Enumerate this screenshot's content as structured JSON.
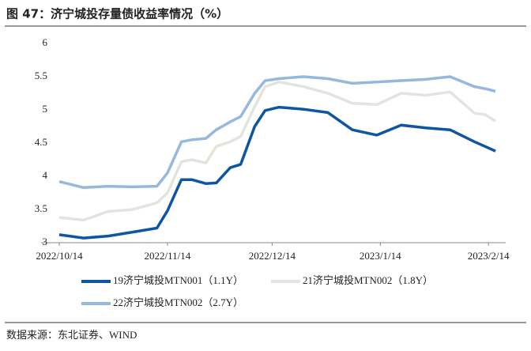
{
  "chart_data": {
    "type": "line",
    "title": "图 47：济宁城投存量债收益率情况（%）",
    "source": "数据来源：东北证券、WIND",
    "x": [
      "2022/10/14",
      "2022/10/21",
      "2022/10/28",
      "2022/11/04",
      "2022/11/11",
      "2022/11/14",
      "2022/11/18",
      "2022/11/21",
      "2022/11/25",
      "2022/11/28",
      "2022/12/02",
      "2022/12/05",
      "2022/12/09",
      "2022/12/12",
      "2022/12/16",
      "2022/12/23",
      "2022/12/30",
      "2023/01/06",
      "2023/01/13",
      "2023/01/20",
      "2023/01/27",
      "2023/02/03",
      "2023/02/10",
      "2023/02/13",
      "2023/02/16"
    ],
    "series": [
      {
        "name": "19济宁城投MTN001（1.1Y）",
        "color": "#0e56a3",
        "values": [
          3.12,
          3.07,
          3.1,
          3.16,
          3.22,
          3.48,
          3.95,
          3.95,
          3.89,
          3.9,
          4.13,
          4.18,
          4.75,
          4.99,
          5.04,
          5.01,
          4.96,
          4.7,
          4.62,
          4.77,
          4.73,
          4.7,
          4.52,
          4.45,
          4.38
        ]
      },
      {
        "name": "21济宁城投MTN002（1.8Y）",
        "color": "#e4e4de",
        "values": [
          3.38,
          3.34,
          3.47,
          3.5,
          3.6,
          3.75,
          4.22,
          4.25,
          4.2,
          4.45,
          4.52,
          4.6,
          5.05,
          5.35,
          5.42,
          5.35,
          5.25,
          5.1,
          5.08,
          5.25,
          5.22,
          5.27,
          4.95,
          4.93,
          4.83
        ]
      },
      {
        "name": "22济宁城投MTN002（2.7Y）",
        "color": "#96b8dd",
        "values": [
          3.92,
          3.83,
          3.85,
          3.84,
          3.85,
          4.05,
          4.52,
          4.55,
          4.57,
          4.7,
          4.82,
          4.9,
          5.25,
          5.44,
          5.47,
          5.5,
          5.47,
          5.4,
          5.42,
          5.44,
          5.46,
          5.5,
          5.35,
          5.32,
          5.28
        ]
      }
    ],
    "xlim": [
      "2022/10/14",
      "2023/02/16"
    ],
    "xticks": [
      "2022/10/14",
      "2022/11/14",
      "2022/12/14",
      "2023/1/14",
      "2023/2/14"
    ],
    "ylim": [
      3,
      6
    ],
    "yticks": [
      3,
      3.5,
      4,
      4.5,
      5,
      5.5,
      6
    ],
    "grid": false
  }
}
